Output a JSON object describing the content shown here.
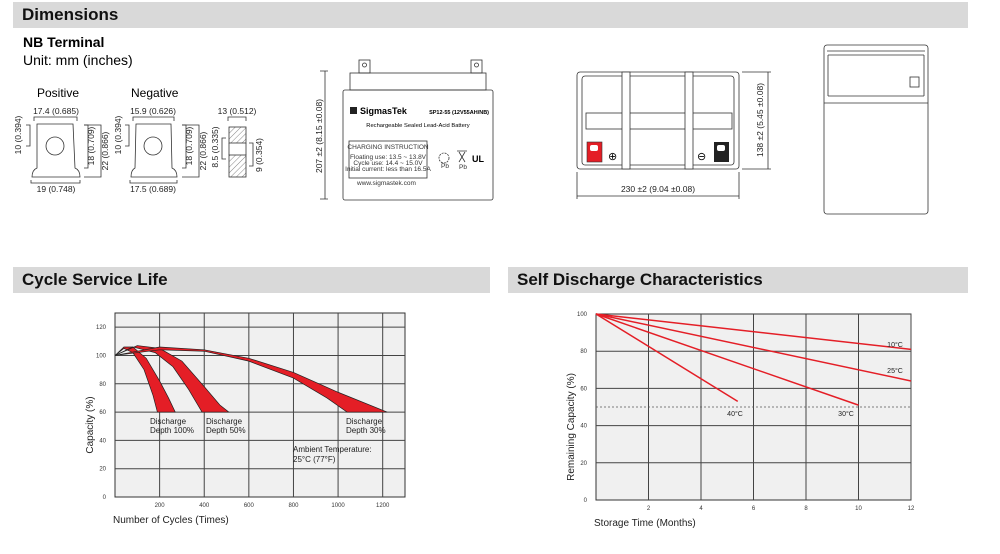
{
  "sections": {
    "dimensions": "Dimensions",
    "cycle_life": "Cycle Service Life",
    "self_discharge": "Self Discharge Characteristics"
  },
  "terminal": {
    "title": "NB Terminal",
    "unit": "Unit: mm (inches)",
    "positive_label": "Positive",
    "negative_label": "Negative",
    "pos_top": "17.4 (0.685)",
    "pos_left": "10 (0.394)",
    "pos_r1": "18 (0.709)",
    "pos_r2": "22 (0.866)",
    "pos_bottom": "19 (0.748)",
    "neg_top": "15.9 (0.626)",
    "neg_left": "10 (0.394)",
    "neg_r1": "18 (0.709)",
    "neg_r2": "22 (0.866)",
    "neg_bottom": "17.5 (0.689)",
    "side_top": "13 (0.512)",
    "side_left": "8.5 (0.335)",
    "side_right": "9 (0.354)"
  },
  "battery": {
    "height_dim": "207 ±2 (8.15 ±0.08)",
    "brand": "SigmasTek",
    "model": "SP12-55 (12V55AH/NB)",
    "subtitle": "Rechargeable Sealed Lead-Acid Battery",
    "charging_title": "CHARGING INSTRUCTION",
    "charging_lines": [
      "Floating use: 13.5 ~ 13.8V",
      "Cycle use: 14.4 ~ 15.0V",
      "Initial current: less than 16.5A"
    ],
    "website": "www.sigmastek.com",
    "pb1": "Pb",
    "pb2": "Pb",
    "width_dim": "230 ±2 (9.04 ±0.08)",
    "depth_dim": "138 ±2 (5.45 ±0.08)",
    "positive_symbol": "⊕",
    "negative_symbol": "⊖",
    "colors": {
      "positive_terminal": "#e41e26",
      "negative_terminal": "#222222"
    }
  },
  "chart_data": [
    {
      "type": "area",
      "xlabel": "Number of Cycles (Times)",
      "ylabel": "Capacity (%)",
      "xlim": [
        0,
        1300
      ],
      "ylim": [
        0,
        130
      ],
      "xticks": [
        200,
        400,
        600,
        800,
        1000,
        1200
      ],
      "yticks": [
        0,
        20,
        40,
        60,
        80,
        100,
        120
      ],
      "grid": true,
      "series": [
        {
          "name": "Discharge Depth 100%",
          "label_lines": [
            "Discharge",
            "Depth 100%"
          ],
          "outer": [
            [
              0,
              100
            ],
            [
              40,
              106
            ],
            [
              80,
              106
            ],
            [
              140,
              98
            ],
            [
              200,
              82
            ],
            [
              240,
              70
            ],
            [
              270,
              60
            ]
          ],
          "inner": [
            [
              0,
              100
            ],
            [
              40,
              105
            ],
            [
              80,
              102
            ],
            [
              130,
              90
            ],
            [
              170,
              72
            ],
            [
              190,
              60
            ]
          ]
        },
        {
          "name": "Discharge Depth 50%",
          "label_lines": [
            "Discharge",
            "Depth 50%"
          ],
          "outer": [
            [
              0,
              100
            ],
            [
              100,
              107
            ],
            [
              200,
              105
            ],
            [
              300,
              96
            ],
            [
              400,
              78
            ],
            [
              470,
              65
            ],
            [
              510,
              60
            ]
          ],
          "inner": [
            [
              0,
              100
            ],
            [
              80,
              106
            ],
            [
              180,
              102
            ],
            [
              260,
              92
            ],
            [
              330,
              76
            ],
            [
              390,
              60
            ]
          ]
        },
        {
          "name": "Discharge Depth 30%",
          "label_lines": [
            "Discharge",
            "Depth 30%"
          ],
          "outer": [
            [
              0,
              100
            ],
            [
              200,
              106
            ],
            [
              400,
              104
            ],
            [
              600,
              98
            ],
            [
              800,
              88
            ],
            [
              1000,
              74
            ],
            [
              1220,
              60
            ]
          ],
          "inner": [
            [
              0,
              100
            ],
            [
              200,
              104
            ],
            [
              400,
              103
            ],
            [
              600,
              96
            ],
            [
              800,
              84
            ],
            [
              950,
              70
            ],
            [
              1040,
              60
            ]
          ]
        }
      ],
      "annotation": [
        "Ambient Temperature:",
        "25°C (77°F)"
      ],
      "color": "#e41e26"
    },
    {
      "type": "line",
      "xlabel": "Storage Time (Months)",
      "ylabel": "Remaining Capacity (%)",
      "xlim": [
        0,
        12
      ],
      "ylim": [
        0,
        100
      ],
      "xticks": [
        0,
        2,
        4,
        6,
        8,
        10,
        12
      ],
      "yticks": [
        0,
        20,
        40,
        60,
        80,
        100
      ],
      "grid": true,
      "reference_line": 50,
      "series": [
        {
          "name": "10°C",
          "points": [
            [
              0,
              100
            ],
            [
              12,
              81
            ]
          ]
        },
        {
          "name": "25°C",
          "points": [
            [
              0,
              100
            ],
            [
              12,
              64
            ]
          ]
        },
        {
          "name": "30°C",
          "points": [
            [
              0,
              100
            ],
            [
              10,
              51
            ]
          ]
        },
        {
          "name": "40°C",
          "points": [
            [
              0,
              100
            ],
            [
              5.4,
              53
            ]
          ]
        }
      ],
      "color": "#e41e26"
    }
  ]
}
